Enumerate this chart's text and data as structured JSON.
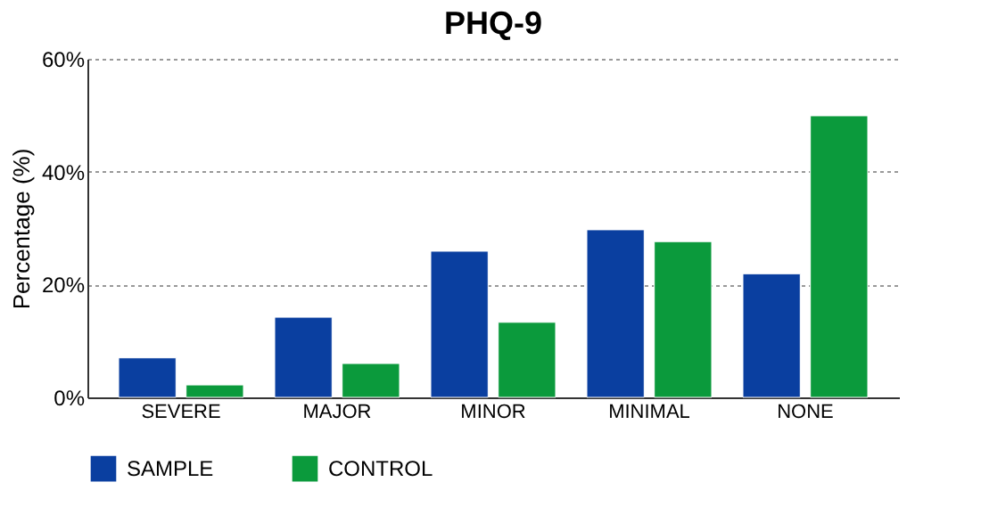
{
  "chart_data": {
    "type": "bar",
    "title": "PHQ-9",
    "ylabel": "Percentage (%)",
    "categories": [
      "SEVERE",
      "MAJOR",
      "MINOR",
      "MINIMAL",
      "NONE"
    ],
    "series": [
      {
        "name": "SAMPLE",
        "color": "#0a3fa0",
        "values": [
          7.0,
          14.2,
          25.9,
          29.7,
          21.9
        ]
      },
      {
        "name": "CONTROL",
        "color": "#0b9a3c",
        "values": [
          2.2,
          6.0,
          13.3,
          27.6,
          49.9
        ]
      }
    ],
    "ylim": [
      0,
      60
    ],
    "yticks": [
      {
        "value": 0,
        "label": "0%"
      },
      {
        "value": 20,
        "label": "20%"
      },
      {
        "value": 40,
        "label": "40%"
      },
      {
        "value": 60,
        "label": "60%"
      }
    ],
    "grid": "y",
    "legend": "bottom"
  }
}
